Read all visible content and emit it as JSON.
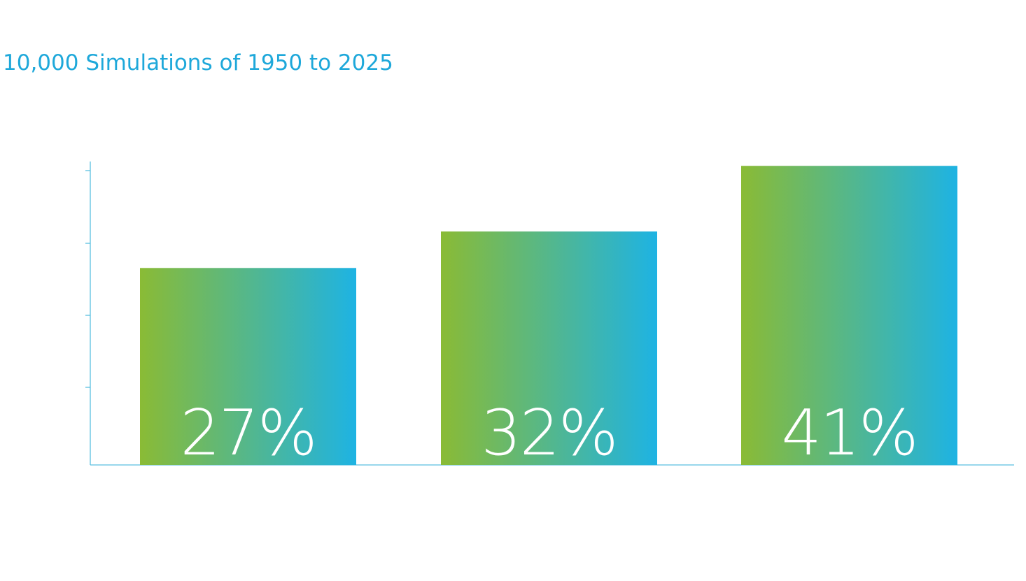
{
  "chart_data": {
    "type": "bar",
    "title": "10,000 Simulations of 1950 to 2025",
    "categories": [
      "",
      "",
      ""
    ],
    "values": [
      27,
      32,
      41
    ],
    "data_labels": [
      "27%",
      "32%",
      "41%"
    ],
    "xlabel": "",
    "ylabel": "",
    "ylim": [
      0,
      41.5
    ],
    "grid": false,
    "legend": "none",
    "colors": {
      "title": "#1ea8da",
      "axis": "#5bbfe0",
      "bar_gradient_start": "#8abb35",
      "bar_gradient_end": "#1eb3e3",
      "label": "#ffffff"
    }
  }
}
